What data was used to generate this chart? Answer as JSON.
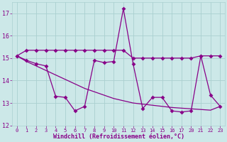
{
  "xlabel": "Windchill (Refroidissement éolien,°C)",
  "background_color": "#cce8e8",
  "grid_color": "#aad0d0",
  "line_color": "#880088",
  "x_indices": [
    0,
    1,
    2,
    3,
    4,
    5,
    6,
    7,
    8,
    9,
    10,
    11,
    12,
    13,
    14,
    15,
    16,
    17,
    18,
    19,
    20,
    21
  ],
  "x_labels": [
    "0",
    "1",
    "2",
    "3",
    "4",
    "5",
    "6",
    "7",
    "8",
    "9",
    "10",
    "11",
    "12",
    "13",
    "14",
    "15",
    "16",
    "17",
    "20",
    "21",
    "22",
    "23"
  ],
  "y_zigzag": [
    15.1,
    14.9,
    14.75,
    14.65,
    13.3,
    13.25,
    12.65,
    12.85,
    14.9,
    14.8,
    14.85,
    17.2,
    14.75,
    12.75,
    13.25,
    13.25,
    12.65,
    12.6,
    12.65,
    15.1,
    13.35,
    12.85
  ],
  "y_flat": [
    15.1,
    15.35,
    15.35,
    15.35,
    15.35,
    15.35,
    15.35,
    15.35,
    15.35,
    15.35,
    15.35,
    15.35,
    15.0,
    15.0,
    15.0,
    15.0,
    15.0,
    15.0,
    15.0,
    15.1,
    15.1,
    15.1
  ],
  "y_trend": [
    15.1,
    14.85,
    14.65,
    14.45,
    14.25,
    14.05,
    13.85,
    13.65,
    13.5,
    13.35,
    13.2,
    13.1,
    13.0,
    12.95,
    12.9,
    12.85,
    12.8,
    12.77,
    12.74,
    12.71,
    12.68,
    12.85
  ],
  "xlim": [
    -0.5,
    21.5
  ],
  "ylim": [
    12.0,
    17.5
  ],
  "yticks": [
    12,
    13,
    14,
    15,
    16,
    17
  ],
  "figsize": [
    3.2,
    2.0
  ],
  "dpi": 100
}
